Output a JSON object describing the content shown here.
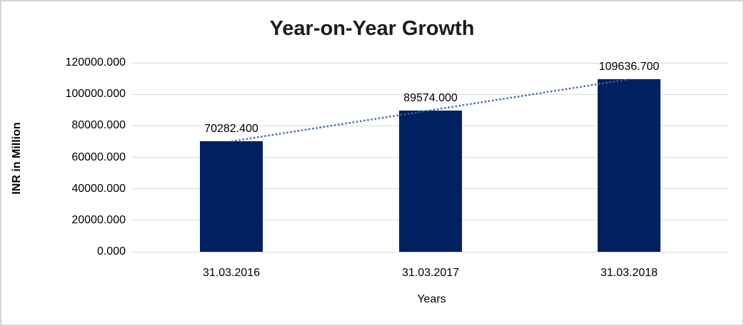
{
  "chart": {
    "colors": {
      "bar": "#002060",
      "trendline": "#3b62b5",
      "gridline": "#d9d9d9",
      "title_text": "#1c1c1c",
      "axis_text": "#000000",
      "frame_border": "#d4d4d4",
      "background": "#ffffff"
    }
  },
  "chart_data": {
    "type": "bar",
    "title": "Year-on-Year Growth",
    "xlabel": "Years",
    "ylabel": "INR in Million",
    "categories": [
      "31.03.2016",
      "31.03.2017",
      "31.03.2018"
    ],
    "values": [
      70282.4,
      89574.0,
      109636.7
    ],
    "data_labels": [
      "70282.400",
      "89574.000",
      "109636.700"
    ],
    "ylim": [
      0,
      120000
    ],
    "ytick_labels": [
      "0.000",
      "20000.000",
      "40000.000",
      "60000.000",
      "80000.000",
      "100000.000",
      "120000.000"
    ],
    "grid": true,
    "legend": "none",
    "trendline": {
      "type": "linear",
      "style": "dotted",
      "fit_values_at_categories": [
        70153.9,
        89831.0,
        109508.2
      ]
    }
  }
}
